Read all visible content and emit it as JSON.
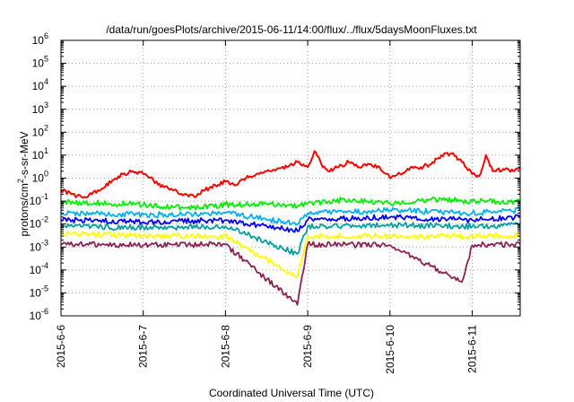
{
  "chart_data": {
    "type": "line",
    "title": "/data/run/goesPlots/archive/2015-06-11/14:00/flux/../flux/5daysMoonFluxes.txt",
    "xlabel": "Coordinated Universal Time (UTC)",
    "ylabel": {
      "base": "protons/cm",
      "sup": "2",
      "rest": "-s-sr-MeV"
    },
    "y_scale": "log",
    "ylim": [
      1e-06,
      1000000.0
    ],
    "y_ticks": [
      {
        "value": 1e-06,
        "base": "10",
        "exp": "-6"
      },
      {
        "value": 1e-05,
        "base": "10",
        "exp": "-5"
      },
      {
        "value": 0.0001,
        "base": "10",
        "exp": "-4"
      },
      {
        "value": 0.001,
        "base": "10",
        "exp": "-3"
      },
      {
        "value": 0.01,
        "base": "10",
        "exp": "-2"
      },
      {
        "value": 0.1,
        "base": "10",
        "exp": "-1"
      },
      {
        "value": 1,
        "base": "10",
        "exp": "0"
      },
      {
        "value": 10,
        "base": "10",
        "exp": "1"
      },
      {
        "value": 100,
        "base": "10",
        "exp": "2"
      },
      {
        "value": 1000,
        "base": "10",
        "exp": "3"
      },
      {
        "value": 10000,
        "base": "10",
        "exp": "4"
      },
      {
        "value": 100000,
        "base": "10",
        "exp": "5"
      },
      {
        "value": 1000000,
        "base": "10",
        "exp": "6"
      }
    ],
    "xlim": [
      "2015-06-06 00:00",
      "2015-06-11 14:00"
    ],
    "x_ticks": [
      {
        "value": "2015-06-06 00:00",
        "label": "2015-6-6"
      },
      {
        "value": "2015-06-07 00:00",
        "label": "2015-6-7"
      },
      {
        "value": "2015-06-08 00:00",
        "label": "2015-6-8"
      },
      {
        "value": "2015-06-09 00:00",
        "label": "2015-6-9"
      },
      {
        "value": "2015-06-10 00:00",
        "label": "2015-6-10"
      },
      {
        "value": "2015-06-11 00:00",
        "label": "2015-6-11"
      }
    ],
    "grid": true,
    "series": [
      {
        "color": "#ff0000",
        "points": [
          [
            "2015-06-06 00:00",
            0.3
          ],
          [
            "2015-06-06 03:00",
            0.2
          ],
          [
            "2015-06-06 06:00",
            0.15
          ],
          [
            "2015-06-06 09:00",
            0.2
          ],
          [
            "2015-06-06 12:00",
            0.35
          ],
          [
            "2015-06-06 15:00",
            0.8
          ],
          [
            "2015-06-06 18:00",
            1.5
          ],
          [
            "2015-06-06 21:00",
            2.0
          ],
          [
            "2015-06-07 00:00",
            1.5
          ],
          [
            "2015-06-07 03:00",
            0.8
          ],
          [
            "2015-06-07 06:00",
            0.4
          ],
          [
            "2015-06-07 09:00",
            0.3
          ],
          [
            "2015-06-07 12:00",
            0.2
          ],
          [
            "2015-06-07 15:00",
            0.15
          ],
          [
            "2015-06-07 18:00",
            0.3
          ],
          [
            "2015-06-07 21:00",
            0.5
          ],
          [
            "2015-06-08 00:00",
            0.7
          ],
          [
            "2015-06-08 03:00",
            0.5
          ],
          [
            "2015-06-08 06:00",
            1.0
          ],
          [
            "2015-06-08 09:00",
            1.5
          ],
          [
            "2015-06-08 12:00",
            2.0
          ],
          [
            "2015-06-08 15:00",
            2.5
          ],
          [
            "2015-06-08 18:00",
            3.0
          ],
          [
            "2015-06-08 21:00",
            5.0
          ],
          [
            "2015-06-09 00:00",
            3.0
          ],
          [
            "2015-06-09 02:00",
            15.0
          ],
          [
            "2015-06-09 04:00",
            4.0
          ],
          [
            "2015-06-09 06:00",
            2.0
          ],
          [
            "2015-06-09 09:00",
            3.0
          ],
          [
            "2015-06-09 12:00",
            5.0
          ],
          [
            "2015-06-09 15:00",
            3.0
          ],
          [
            "2015-06-09 18:00",
            4.0
          ],
          [
            "2015-06-09 21:00",
            3.0
          ],
          [
            "2015-06-10 00:00",
            1.0
          ],
          [
            "2015-06-10 03:00",
            1.5
          ],
          [
            "2015-06-10 06:00",
            3.0
          ],
          [
            "2015-06-10 09:00",
            3.0
          ],
          [
            "2015-06-10 12:00",
            4.0
          ],
          [
            "2015-06-10 15:00",
            10.0
          ],
          [
            "2015-06-10 18:00",
            12.0
          ],
          [
            "2015-06-10 21:00",
            5.0
          ],
          [
            "2015-06-11 00:00",
            1.5
          ],
          [
            "2015-06-11 02:00",
            1.2
          ],
          [
            "2015-06-11 04:00",
            10.0
          ],
          [
            "2015-06-11 06:00",
            2.0
          ],
          [
            "2015-06-11 09:00",
            2.5
          ],
          [
            "2015-06-11 12:00",
            2.0
          ],
          [
            "2015-06-11 14:00",
            3.0
          ]
        ]
      },
      {
        "color": "#00ee00",
        "points": [
          [
            "2015-06-06 00:00",
            0.09
          ],
          [
            "2015-06-06 12:00",
            0.08
          ],
          [
            "2015-06-07 00:00",
            0.07
          ],
          [
            "2015-06-07 12:00",
            0.05
          ],
          [
            "2015-06-08 00:00",
            0.07
          ],
          [
            "2015-06-08 12:00",
            0.08
          ],
          [
            "2015-06-08 21:00",
            0.06
          ],
          [
            "2015-06-09 00:00",
            0.08
          ],
          [
            "2015-06-09 12:00",
            0.12
          ],
          [
            "2015-06-10 00:00",
            0.08
          ],
          [
            "2015-06-10 12:00",
            0.12
          ],
          [
            "2015-06-11 00:00",
            0.1
          ],
          [
            "2015-06-11 14:00",
            0.09
          ]
        ]
      },
      {
        "color": "#00b0f0",
        "points": [
          [
            "2015-06-06 00:00",
            0.03
          ],
          [
            "2015-06-07 00:00",
            0.025
          ],
          [
            "2015-06-08 00:00",
            0.03
          ],
          [
            "2015-06-08 21:00",
            0.01
          ],
          [
            "2015-06-09 00:00",
            0.03
          ],
          [
            "2015-06-10 00:00",
            0.04
          ],
          [
            "2015-06-11 00:00",
            0.03
          ],
          [
            "2015-06-11 14:00",
            0.04
          ]
        ]
      },
      {
        "color": "#0000ff",
        "points": [
          [
            "2015-06-06 00:00",
            0.015
          ],
          [
            "2015-06-07 00:00",
            0.012
          ],
          [
            "2015-06-08 00:00",
            0.015
          ],
          [
            "2015-06-08 21:00",
            0.005
          ],
          [
            "2015-06-09 00:00",
            0.015
          ],
          [
            "2015-06-10 00:00",
            0.02
          ],
          [
            "2015-06-11 00:00",
            0.015
          ],
          [
            "2015-06-11 14:00",
            0.02
          ]
        ]
      },
      {
        "color": "#00a0a0",
        "points": [
          [
            "2015-06-06 00:00",
            0.008
          ],
          [
            "2015-06-07 00:00",
            0.007
          ],
          [
            "2015-06-08 00:00",
            0.008
          ],
          [
            "2015-06-08 21:00",
            0.0005
          ],
          [
            "2015-06-09 00:00",
            0.008
          ],
          [
            "2015-06-10 00:00",
            0.009
          ],
          [
            "2015-06-11 00:00",
            0.008
          ],
          [
            "2015-06-11 14:00",
            0.009
          ]
        ]
      },
      {
        "color": "#ffff00",
        "points": [
          [
            "2015-06-06 00:00",
            0.004
          ],
          [
            "2015-06-07 00:00",
            0.003
          ],
          [
            "2015-06-08 00:00",
            0.003
          ],
          [
            "2015-06-08 21:00",
            5e-05
          ],
          [
            "2015-06-09 00:00",
            0.003
          ],
          [
            "2015-06-10 00:00",
            0.003
          ],
          [
            "2015-06-11 00:00",
            0.003
          ],
          [
            "2015-06-11 14:00",
            0.003
          ]
        ]
      },
      {
        "color": "#8b2252",
        "points": [
          [
            "2015-06-06 00:00",
            0.0013
          ],
          [
            "2015-06-07 00:00",
            0.0012
          ],
          [
            "2015-06-08 00:00",
            0.0013
          ],
          [
            "2015-06-08 21:00",
            3e-06
          ],
          [
            "2015-06-09 00:00",
            0.0013
          ],
          [
            "2015-06-10 00:00",
            0.0012
          ],
          [
            "2015-06-10 21:00",
            3e-05
          ],
          [
            "2015-06-11 00:00",
            0.0012
          ],
          [
            "2015-06-11 14:00",
            0.0013
          ]
        ]
      }
    ]
  }
}
